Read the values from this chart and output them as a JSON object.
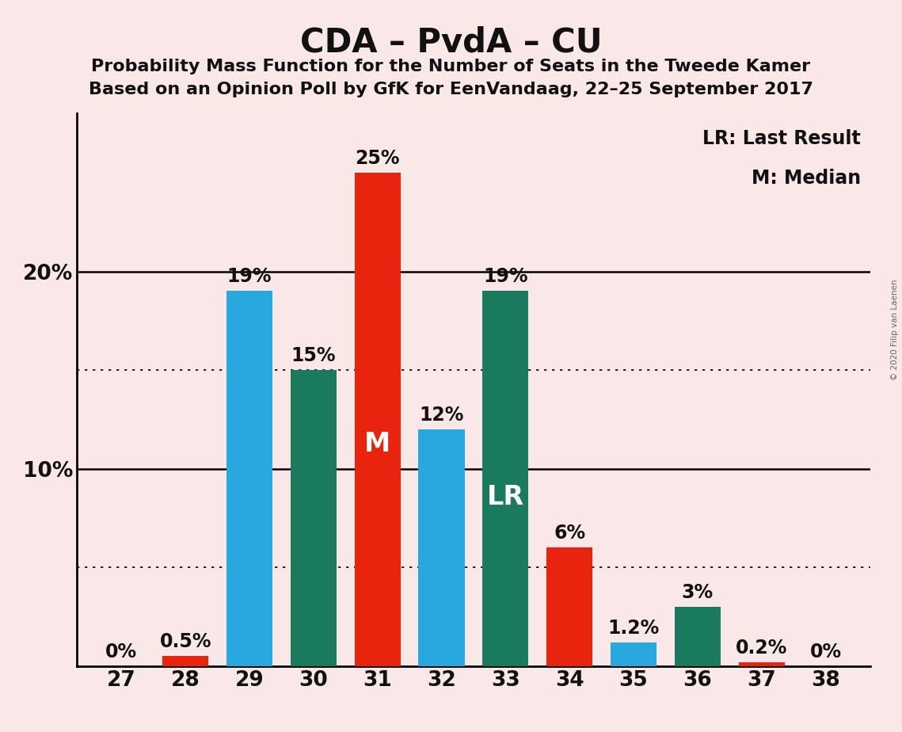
{
  "title": "CDA – PvdA – CU",
  "subtitle1": "Probability Mass Function for the Number of Seats in the Tweede Kamer",
  "subtitle2": "Based on an Opinion Poll by GfK for EenVandaag, 22–25 September 2017",
  "copyright": "© 2020 Filip van Laenen",
  "seats": [
    27,
    28,
    29,
    30,
    31,
    32,
    33,
    34,
    35,
    36,
    37,
    38
  ],
  "values": [
    0.0,
    0.5,
    19.0,
    15.0,
    25.0,
    12.0,
    19.0,
    6.0,
    1.2,
    3.0,
    0.2,
    0.0
  ],
  "bar_colors": [
    "#E8230E",
    "#E8230E",
    "#29A8E0",
    "#1A7A5E",
    "#E8230E",
    "#29A8E0",
    "#1A7A5E",
    "#E8230E",
    "#29A8E0",
    "#1A7A5E",
    "#E8230E",
    "#E8230E"
  ],
  "median_seat": 31,
  "lr_seat": 33,
  "background_color": "#FAE8E8",
  "legend_lr": "LR: Last Result",
  "legend_m": "M: Median",
  "ylim": [
    0,
    28
  ],
  "dotted_lines": [
    5,
    15
  ],
  "solid_lines": [
    10,
    20
  ],
  "ytick_positions": [
    10,
    20
  ],
  "ytick_labels": [
    "10%",
    "20%"
  ],
  "value_labels": [
    "0%",
    "0.5%",
    "19%",
    "15%",
    "25%",
    "12%",
    "19%",
    "6%",
    "1.2%",
    "3%",
    "0.2%",
    "0%"
  ],
  "axis_color": "#111111",
  "title_fontsize": 30,
  "subtitle_fontsize": 16,
  "tick_fontsize": 19,
  "bar_label_fontsize": 17,
  "inline_label_fontsize": 24,
  "legend_fontsize": 17
}
